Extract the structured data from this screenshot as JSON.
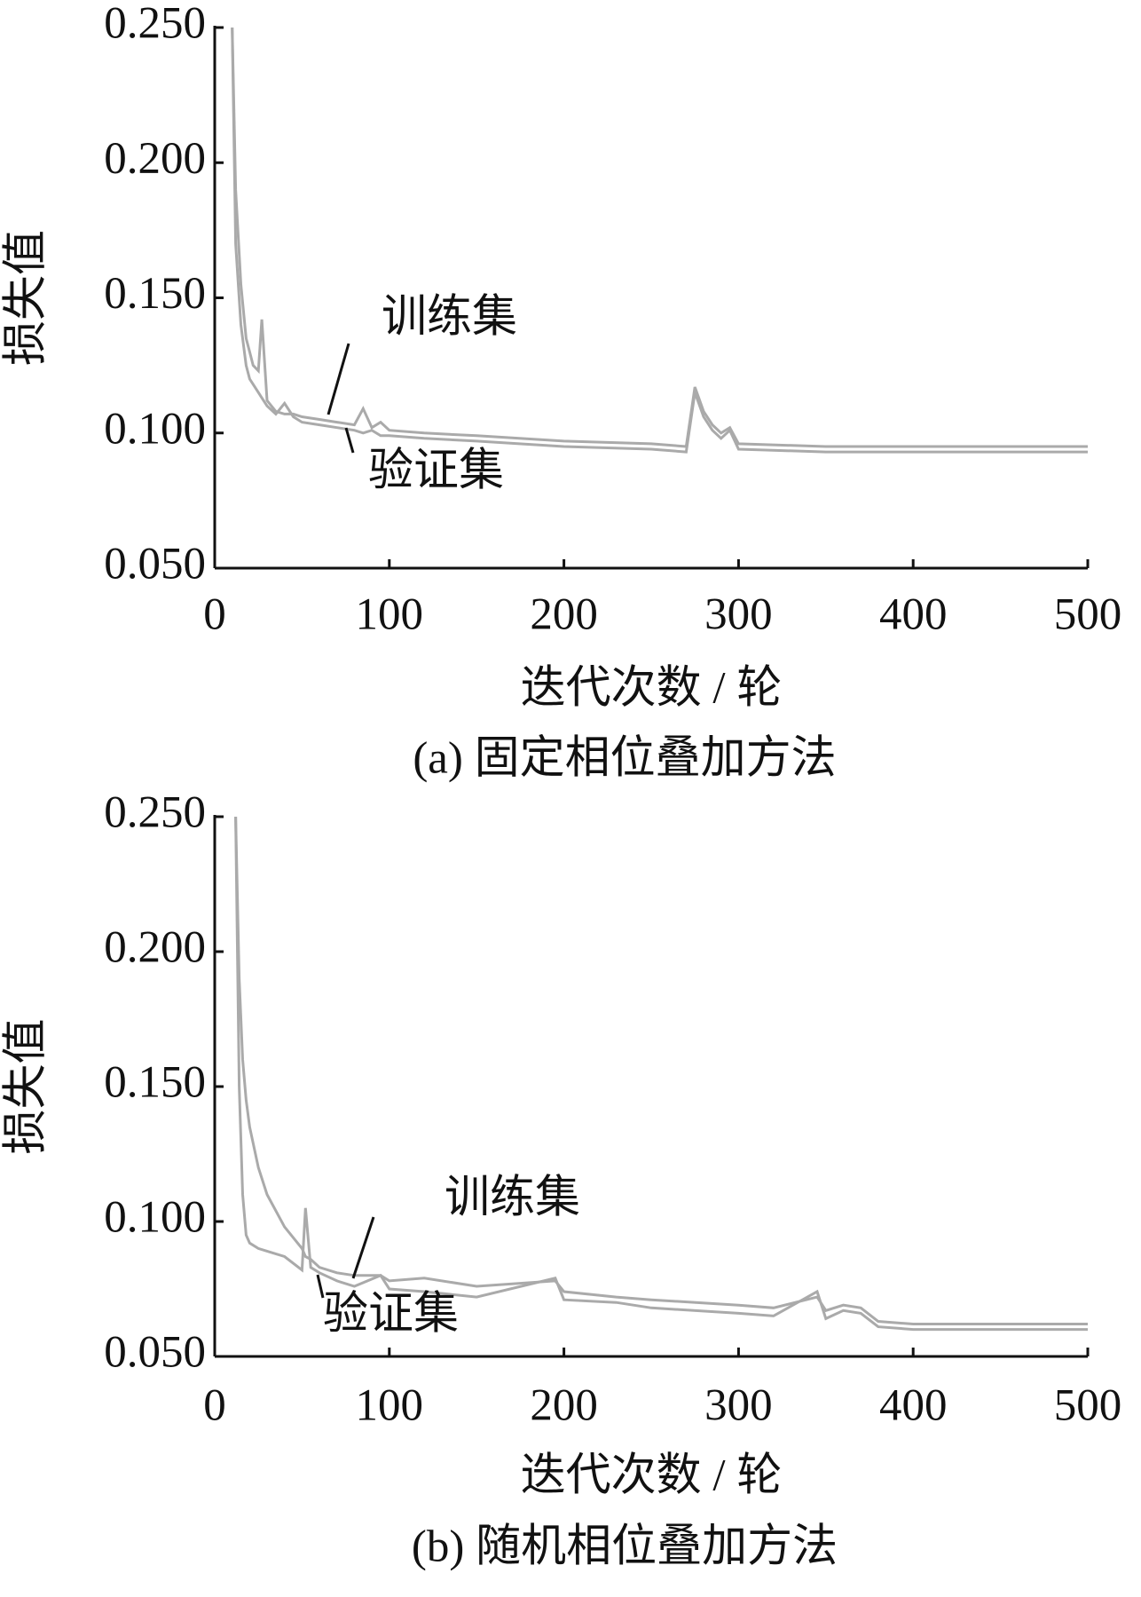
{
  "chart_data": [
    {
      "type": "line",
      "caption": "(a)  固定相位叠加方法",
      "x_label": "迭代次数 / 轮",
      "y_label": "损失值",
      "x": [
        10,
        12,
        15,
        18,
        20,
        22,
        25,
        27,
        30,
        35,
        40,
        45,
        50,
        60,
        70,
        80,
        85,
        90,
        95,
        100,
        120,
        150,
        200,
        250,
        270,
        275,
        280,
        285,
        290,
        295,
        300,
        350,
        400,
        450,
        500
      ],
      "series": [
        {
          "name": "训练集",
          "color": "#aaaaaa",
          "values": [
            0.25,
            0.19,
            0.155,
            0.135,
            0.13,
            0.125,
            0.123,
            0.142,
            0.112,
            0.108,
            0.107,
            0.107,
            0.106,
            0.105,
            0.104,
            0.103,
            0.109,
            0.102,
            0.104,
            0.101,
            0.1,
            0.099,
            0.097,
            0.096,
            0.095,
            0.117,
            0.108,
            0.103,
            0.1,
            0.102,
            0.096,
            0.095,
            0.095,
            0.095,
            0.095
          ]
        },
        {
          "name": "验证集",
          "color": "#aaaaaa",
          "values": [
            0.25,
            0.17,
            0.14,
            0.125,
            0.12,
            0.118,
            0.115,
            0.113,
            0.11,
            0.107,
            0.111,
            0.106,
            0.104,
            0.103,
            0.102,
            0.101,
            0.1,
            0.101,
            0.099,
            0.099,
            0.098,
            0.097,
            0.095,
            0.094,
            0.093,
            0.115,
            0.106,
            0.101,
            0.098,
            0.101,
            0.094,
            0.093,
            0.093,
            0.093,
            0.093
          ]
        }
      ],
      "xlim": [
        0,
        500
      ],
      "ylim": [
        0.05,
        0.25
      ],
      "xticks": [
        0,
        100,
        200,
        300,
        400,
        500
      ],
      "yticks": [
        {
          "value": 0.05,
          "label": "0.050"
        },
        {
          "value": 0.1,
          "label": "0.100"
        },
        {
          "value": 0.15,
          "label": "0.150"
        },
        {
          "value": 0.2,
          "label": "0.200"
        },
        {
          "value": 0.25,
          "label": "0.250"
        }
      ]
    },
    {
      "type": "line",
      "caption": "(b)  随机相位叠加方法",
      "x_label": "迭代次数 / 轮",
      "y_label": "损失值",
      "x": [
        12,
        14,
        16,
        18,
        20,
        25,
        30,
        40,
        50,
        52,
        55,
        60,
        70,
        80,
        95,
        100,
        120,
        150,
        195,
        200,
        230,
        250,
        300,
        320,
        345,
        350,
        360,
        370,
        380,
        400,
        450,
        500
      ],
      "series": [
        {
          "name": "训练集",
          "color": "#aaaaaa",
          "values": [
            0.25,
            0.19,
            0.16,
            0.145,
            0.135,
            0.12,
            0.11,
            0.098,
            0.09,
            0.087,
            0.086,
            0.083,
            0.081,
            0.08,
            0.08,
            0.078,
            0.079,
            0.076,
            0.078,
            0.074,
            0.072,
            0.071,
            0.069,
            0.068,
            0.072,
            0.067,
            0.069,
            0.068,
            0.063,
            0.062,
            0.062,
            0.062
          ]
        },
        {
          "name": "验证集",
          "color": "#aaaaaa",
          "values": [
            0.25,
            0.15,
            0.11,
            0.095,
            0.092,
            0.09,
            0.089,
            0.087,
            0.082,
            0.105,
            0.083,
            0.081,
            0.078,
            0.076,
            0.08,
            0.075,
            0.074,
            0.072,
            0.079,
            0.071,
            0.07,
            0.068,
            0.066,
            0.065,
            0.074,
            0.064,
            0.067,
            0.066,
            0.061,
            0.06,
            0.06,
            0.06
          ]
        }
      ],
      "xlim": [
        0,
        500
      ],
      "ylim": [
        0.05,
        0.25
      ],
      "xticks": [
        0,
        100,
        200,
        300,
        400,
        500
      ],
      "yticks": [
        {
          "value": 0.05,
          "label": "0.050"
        },
        {
          "value": 0.1,
          "label": "0.100"
        },
        {
          "value": 0.15,
          "label": "0.150"
        },
        {
          "value": 0.2,
          "label": "0.200"
        },
        {
          "value": 0.25,
          "label": "0.250"
        }
      ]
    }
  ]
}
